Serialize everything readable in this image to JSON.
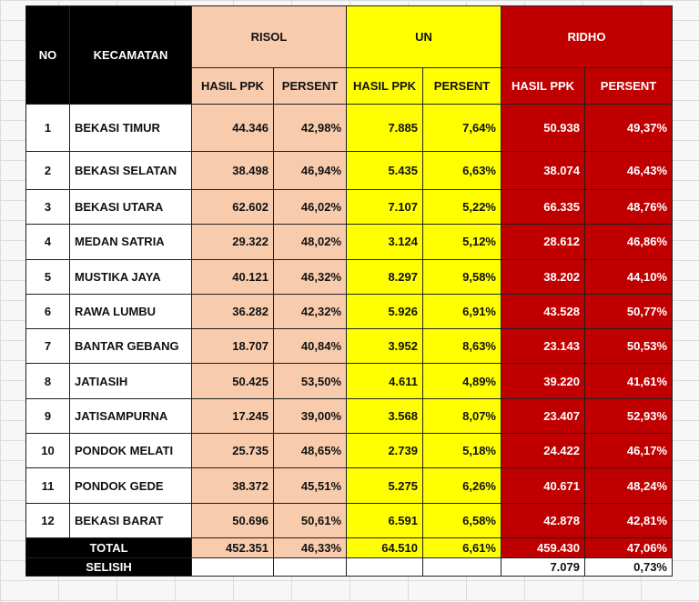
{
  "headers": {
    "no": "NO",
    "kecamatan": "KECAMATAN",
    "risol": "RISOL",
    "un": "UN",
    "ridho": "RIDHO",
    "hasil": "HASIL PPK",
    "persent": "PERSENT"
  },
  "rows": [
    {
      "no": "1",
      "name": "BEKASI TIMUR",
      "r_h": "44.346",
      "r_p": "42,98%",
      "u_h": "7.885",
      "u_p": "7,64%",
      "d_h": "50.938",
      "d_p": "49,37%"
    },
    {
      "no": "2",
      "name": "BEKASI SELATAN",
      "r_h": "38.498",
      "r_p": "46,94%",
      "u_h": "5.435",
      "u_p": "6,63%",
      "d_h": "38.074",
      "d_p": "46,43%"
    },
    {
      "no": "3",
      "name": "BEKASI UTARA",
      "r_h": "62.602",
      "r_p": "46,02%",
      "u_h": "7.107",
      "u_p": "5,22%",
      "d_h": "66.335",
      "d_p": "48,76%"
    },
    {
      "no": "4",
      "name": "MEDAN SATRIA",
      "r_h": "29.322",
      "r_p": "48,02%",
      "u_h": "3.124",
      "u_p": "5,12%",
      "d_h": "28.612",
      "d_p": "46,86%"
    },
    {
      "no": "5",
      "name": "MUSTIKA JAYA",
      "r_h": "40.121",
      "r_p": "46,32%",
      "u_h": "8.297",
      "u_p": "9,58%",
      "d_h": "38.202",
      "d_p": "44,10%"
    },
    {
      "no": "6",
      "name": "RAWA LUMBU",
      "r_h": "36.282",
      "r_p": "42,32%",
      "u_h": "5.926",
      "u_p": "6,91%",
      "d_h": "43.528",
      "d_p": "50,77%"
    },
    {
      "no": "7",
      "name": "BANTAR GEBANG",
      "r_h": "18.707",
      "r_p": "40,84%",
      "u_h": "3.952",
      "u_p": "8,63%",
      "d_h": "23.143",
      "d_p": "50,53%"
    },
    {
      "no": "8",
      "name": "JATIASIH",
      "r_h": "50.425",
      "r_p": "53,50%",
      "u_h": "4.611",
      "u_p": "4,89%",
      "d_h": "39.220",
      "d_p": "41,61%"
    },
    {
      "no": "9",
      "name": "JATISAMPURNA",
      "r_h": "17.245",
      "r_p": "39,00%",
      "u_h": "3.568",
      "u_p": "8,07%",
      "d_h": "23.407",
      "d_p": "52,93%"
    },
    {
      "no": "10",
      "name": "PONDOK MELATI",
      "r_h": "25.735",
      "r_p": "48,65%",
      "u_h": "2.739",
      "u_p": "5,18%",
      "d_h": "24.422",
      "d_p": "46,17%"
    },
    {
      "no": "11",
      "name": "PONDOK GEDE",
      "r_h": "38.372",
      "r_p": "45,51%",
      "u_h": "5.275",
      "u_p": "6,26%",
      "d_h": "40.671",
      "d_p": "48,24%"
    },
    {
      "no": "12",
      "name": "BEKASI BARAT",
      "r_h": "50.696",
      "r_p": "50,61%",
      "u_h": "6.591",
      "u_p": "6,58%",
      "d_h": "42.878",
      "d_p": "42,81%"
    }
  ],
  "total": {
    "label": "TOTAL",
    "r_h": "452.351",
    "r_p": "46,33%",
    "u_h": "64.510",
    "u_p": "6,61%",
    "d_h": "459.430",
    "d_p": "47,06%"
  },
  "selisih": {
    "label": "SELISIH",
    "d_h": "7.079",
    "d_p": "0,73%"
  },
  "colors": {
    "black": "#000000",
    "peach": "#f8cbad",
    "yellow": "#ffff00",
    "red": "#c00000"
  }
}
